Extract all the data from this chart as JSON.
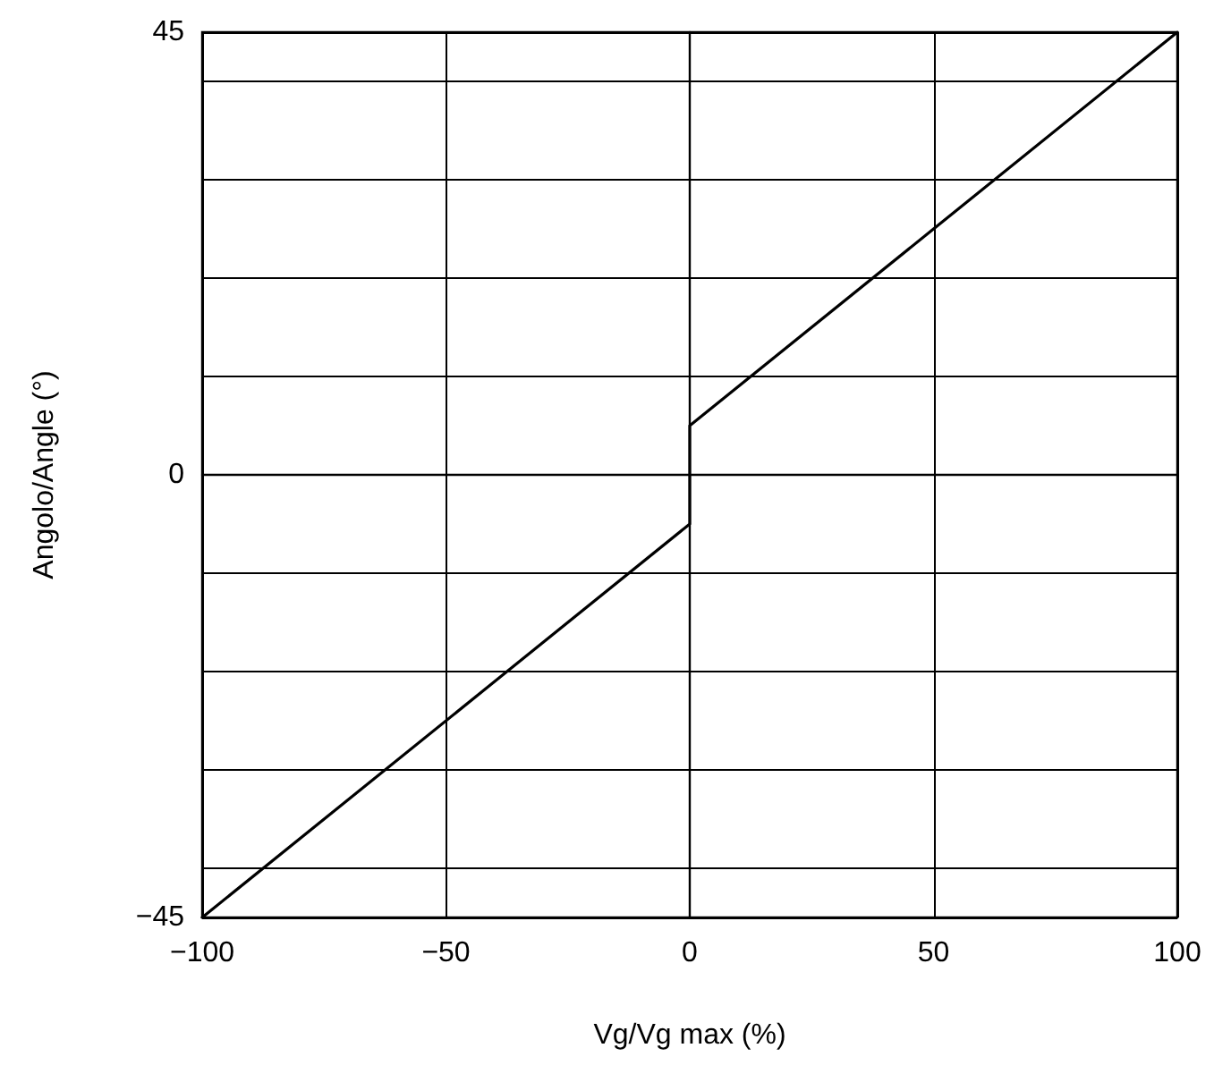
{
  "chart_data": {
    "type": "line",
    "xlabel": "Vg/Vg max (%)",
    "ylabel": "Angolo/Angle (°)",
    "x": [
      -100,
      0,
      0,
      100
    ],
    "series": [
      {
        "color": "#000000",
        "values": [
          -45,
          -5,
          5,
          45
        ]
      }
    ],
    "xlim": [
      -100,
      100
    ],
    "xticks": [
      -100,
      -50,
      0,
      50,
      100
    ],
    "ylim": [
      -45,
      45
    ],
    "yticks": [
      -45,
      {
        "value": -40,
        "label": null
      },
      {
        "value": -30,
        "label": null
      },
      {
        "value": -20,
        "label": null
      },
      {
        "value": -10,
        "label": null
      },
      0,
      {
        "value": 10,
        "label": null
      },
      {
        "value": 20,
        "label": null
      },
      {
        "value": 30,
        "label": null
      },
      {
        "value": 40,
        "label": null
      },
      45
    ],
    "grid": true,
    "marker": "none",
    "line_style": "solid"
  }
}
